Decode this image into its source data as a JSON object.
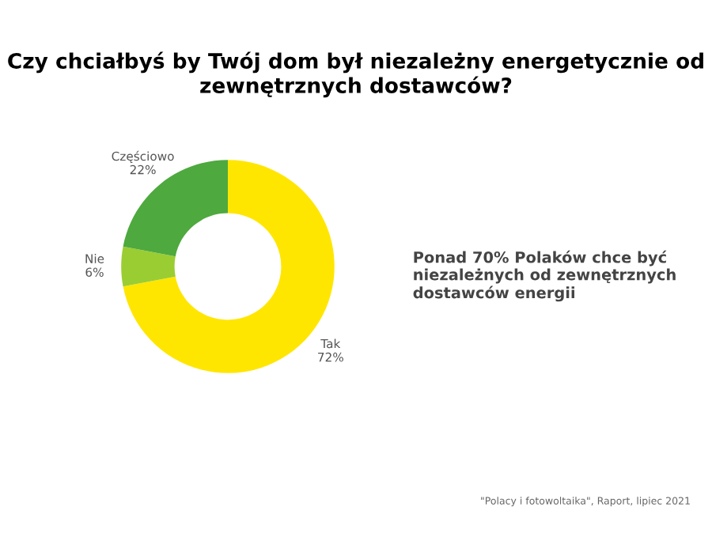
{
  "chart_data": {
    "type": "donut",
    "title": "Czy chciałbyś by Twój dom był niezależny energetycznie od zewnętrznych dostawców?",
    "categories": [
      "Tak",
      "Nie",
      "Częściowo"
    ],
    "values": [
      72,
      6,
      22
    ],
    "value_labels": [
      "72%",
      "6%",
      "22%"
    ],
    "colors": [
      "#ffe600",
      "#9acd32",
      "#4ea93e"
    ],
    "annotations": [
      "Ponad 70% Polaków chce być niezależnych od zewnętrznych dostawców energii",
      "\"Polacy i fotowoltaika\", Raport, lipiec 2021"
    ]
  }
}
